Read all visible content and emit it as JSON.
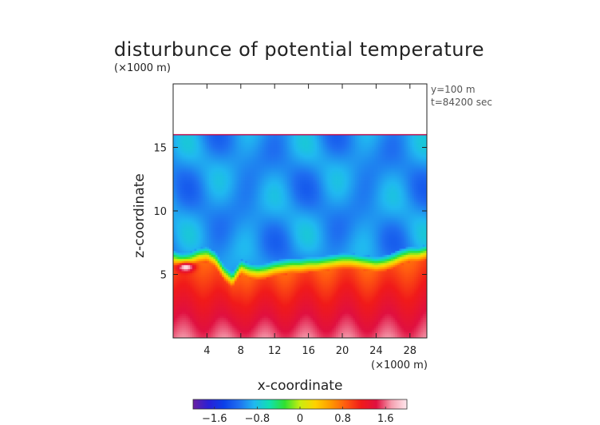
{
  "chart_data": {
    "type": "heatmap",
    "title": "disturbunce of potential temperature",
    "xlabel": "x-coordinate",
    "ylabel": "z-coordinate",
    "x_unit": "(×1000 m)",
    "y_unit": "(×1000 m)",
    "xlim": [
      0,
      30
    ],
    "ylim": [
      0,
      20
    ],
    "x_ticks": [
      "4",
      "8",
      "12",
      "16",
      "20",
      "24",
      "28"
    ],
    "x_tick_values": [
      4,
      8,
      12,
      16,
      20,
      24,
      28
    ],
    "y_ticks": [
      "5",
      "10",
      "15"
    ],
    "y_tick_values": [
      5,
      10,
      15
    ],
    "info": [
      "y=100 m",
      "t=84200 sec"
    ],
    "colorbar": {
      "range": [
        -2.0,
        2.0
      ],
      "tick_labels": [
        "−1.6",
        "−0.8",
        "0",
        "0.8",
        "1.6"
      ],
      "tick_values": [
        -1.6,
        -0.8,
        0,
        0.8,
        1.6
      ],
      "colors": [
        "#6a1fa0",
        "#2a1fd6",
        "#0b3fe8",
        "#1f6ff0",
        "#20b8f0",
        "#10e0b0",
        "#30e030",
        "#c8ee10",
        "#ffd200",
        "#ff9a00",
        "#ff5a10",
        "#f01a1a",
        "#e01040",
        "#f5a0b0",
        "#ffe8ee"
      ]
    },
    "fields": {
      "model_top_km": 16,
      "inversion_height_km": [
        6.3,
        6.1,
        6.2,
        6.5,
        6.6,
        6.2,
        5.2,
        4.6,
        5.6,
        5.3,
        5.2,
        5.3,
        5.5,
        5.6,
        5.7,
        5.7,
        5.8,
        5.8,
        5.9,
        6.0,
        6.1,
        6.1,
        6.0,
        5.9,
        5.8,
        5.9,
        6.1,
        6.4,
        6.6,
        6.6,
        6.8
      ],
      "upper_layer_value": -1.0,
      "lower_layer_surface_value": 1.6,
      "warm_anomaly_center_km": [
        1.5,
        5.6
      ],
      "warm_anomaly_value": 2.0
    }
  }
}
